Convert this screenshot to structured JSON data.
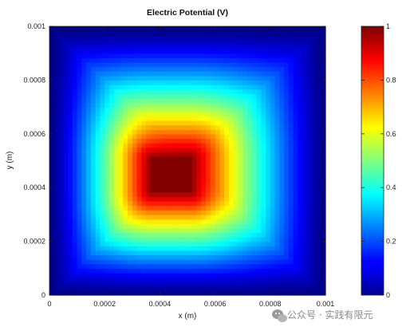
{
  "chart_data": {
    "type": "heatmap",
    "title": "Electric Potential (V)",
    "xlabel": "x (m)",
    "ylabel": "y (m)",
    "xlim": [
      0,
      0.001
    ],
    "ylim": [
      0,
      0.001
    ],
    "xticks": [
      "0",
      "0.0002",
      "0.0004",
      "0.0006",
      "0.0008",
      "0.001"
    ],
    "yticks": [
      "0",
      "0.0002",
      "0.0004",
      "0.0006",
      "0.0008",
      "0.001"
    ],
    "colorbar": {
      "range": [
        0,
        1
      ],
      "ticks": [
        "0",
        "0.2",
        "0.4",
        "0.6",
        "0.8",
        "1"
      ],
      "colormap": "jet"
    },
    "field": {
      "description": "potential peak of 1 V on a central square electrode, decaying to about 0 V at the boundary",
      "electrode_x": [
        0.00037,
        0.00051
      ],
      "electrode_y": [
        0.00039,
        0.00051
      ],
      "peak_value": 1,
      "boundary_value": 0
    },
    "grid": false
  },
  "watermark": {
    "text": "公众号 · 实践有限元",
    "icon": "wechat-icon"
  }
}
